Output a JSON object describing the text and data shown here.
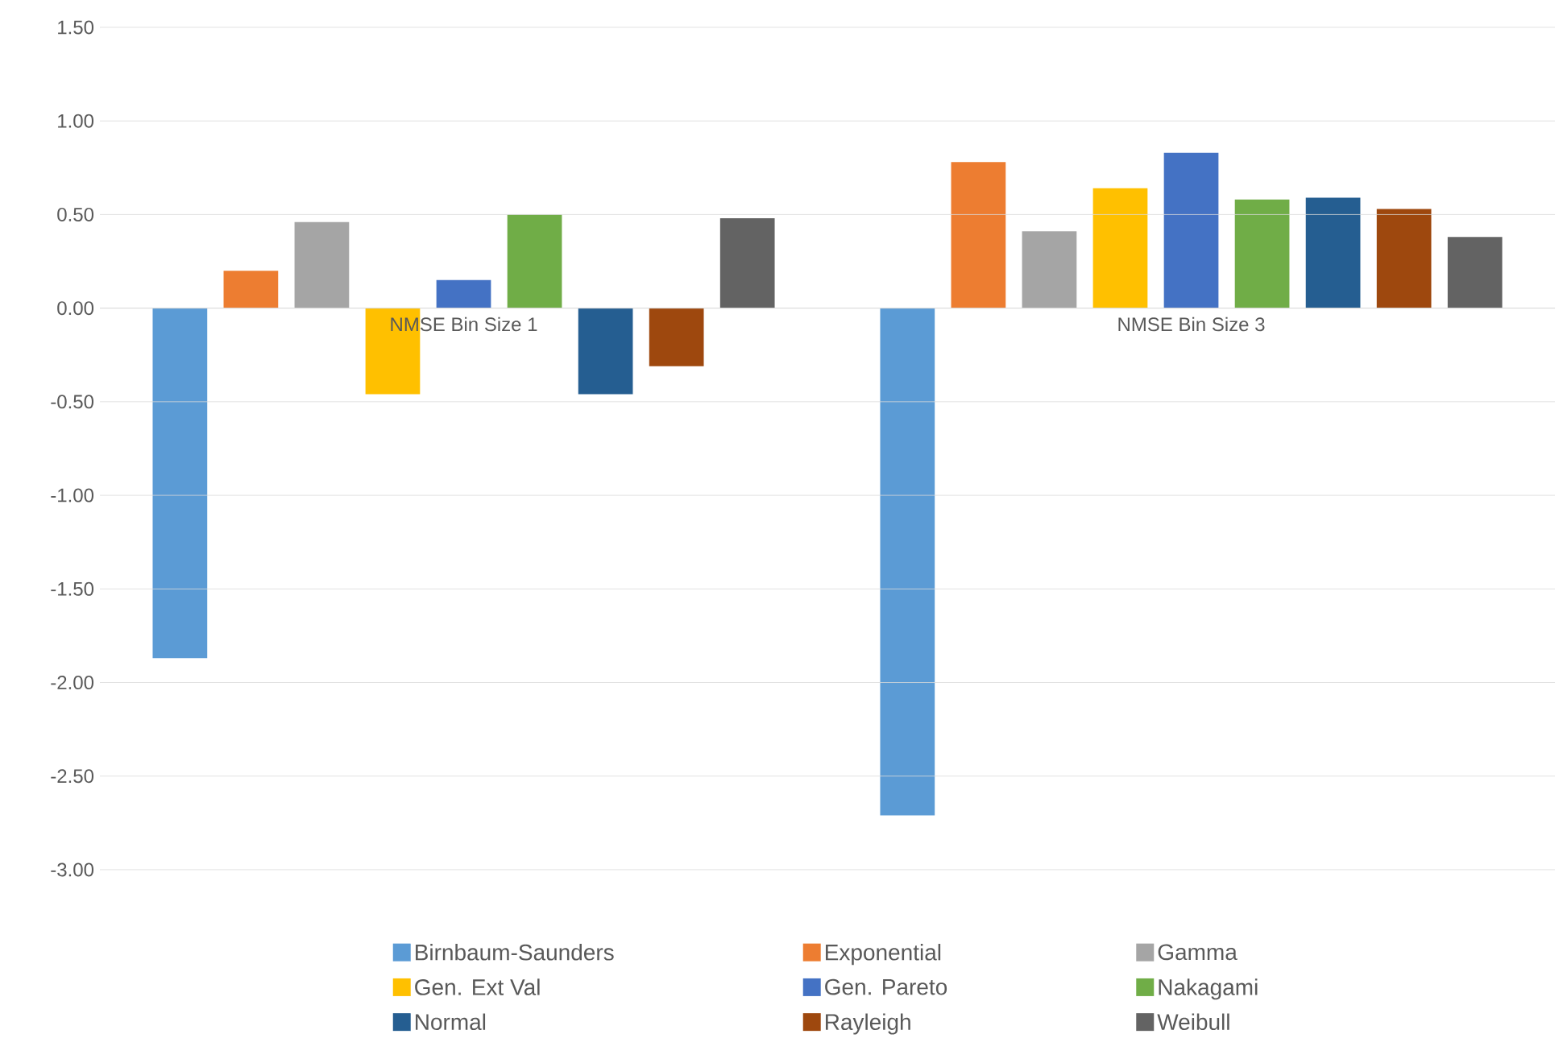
{
  "chart_data": {
    "type": "bar",
    "categories": [
      "NMSE Bin Size 1",
      "NMSE Bin Size 3"
    ],
    "series": [
      {
        "name": "Birnbaum-Saunders",
        "color": "#5b9bd5",
        "values": [
          -1.87,
          -2.71
        ]
      },
      {
        "name": "Exponential",
        "color": "#ed7d31",
        "values": [
          0.2,
          0.78
        ]
      },
      {
        "name": "Gamma",
        "color": "#a5a5a5",
        "values": [
          0.46,
          0.41
        ]
      },
      {
        "name": "Gen. Ext Val",
        "color": "#ffc000",
        "values": [
          -0.46,
          0.64
        ]
      },
      {
        "name": "Gen. Pareto",
        "color": "#4472c4",
        "values": [
          0.15,
          0.83
        ]
      },
      {
        "name": "Nakagami",
        "color": "#70ad47",
        "values": [
          0.5,
          0.58
        ]
      },
      {
        "name": "Normal",
        "color": "#255e91",
        "values": [
          -0.46,
          0.59
        ]
      },
      {
        "name": "Rayleigh",
        "color": "#9e480e",
        "values": [
          -0.31,
          0.53
        ]
      },
      {
        "name": "Weibull",
        "color": "#636363",
        "values": [
          0.48,
          0.38
        ]
      }
    ],
    "ylim": [
      -3,
      1.5
    ],
    "yticks": [
      {
        "value": -3,
        "label": "-3.00"
      },
      {
        "value": -2.5,
        "label": "-2.50"
      },
      {
        "value": -2,
        "label": "-2.00"
      },
      {
        "value": -1.5,
        "label": "-1.50"
      },
      {
        "value": -1,
        "label": "-1.00"
      },
      {
        "value": -0.5,
        "label": "-0.50"
      },
      {
        "value": 0,
        "label": "0.00"
      },
      {
        "value": 0.5,
        "label": "0.50"
      },
      {
        "value": 1,
        "label": "1.00"
      },
      {
        "value": 1.5,
        "label": "1.50"
      }
    ],
    "grid": "y",
    "legend": "bottom"
  }
}
